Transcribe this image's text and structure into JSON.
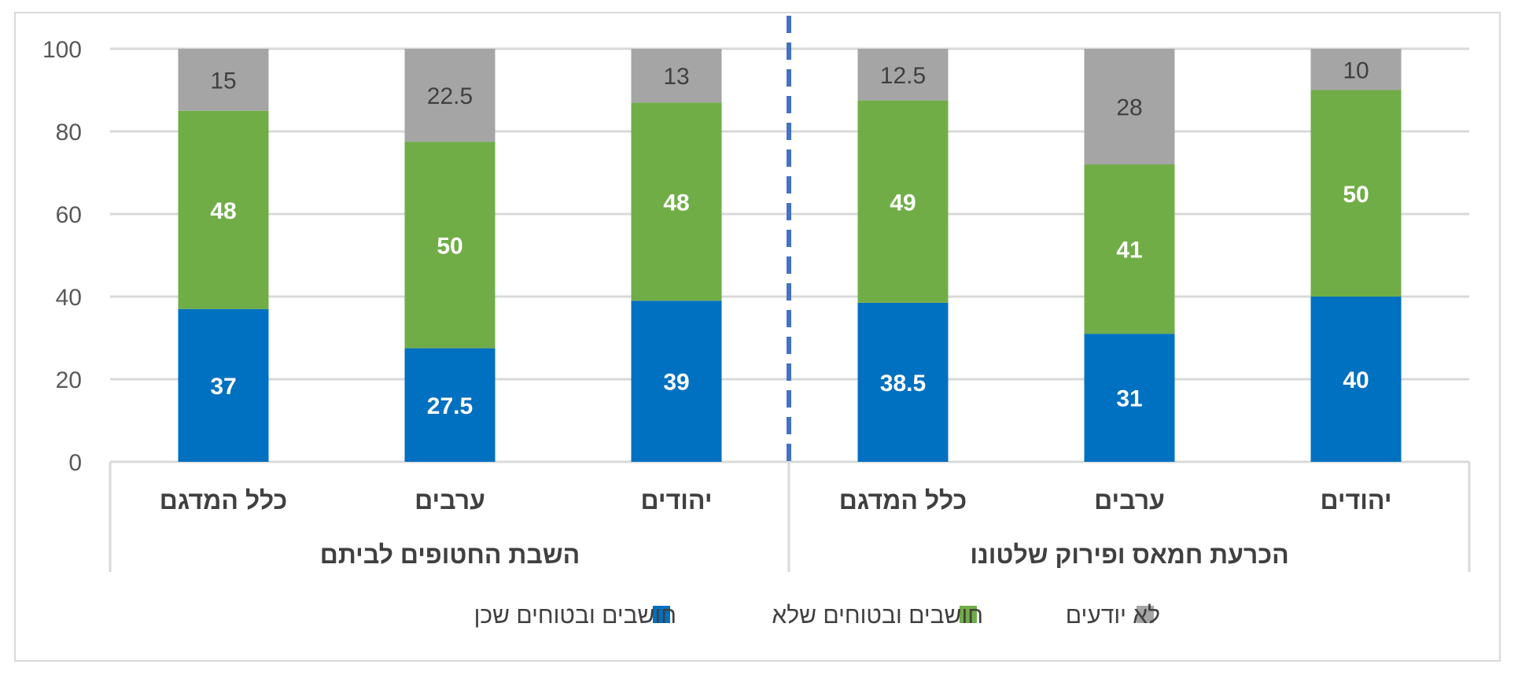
{
  "chart_data": {
    "type": "bar",
    "stacked": true,
    "ylim": [
      0,
      100
    ],
    "yticks": [
      0,
      20,
      40,
      60,
      80,
      100
    ],
    "grid": true,
    "legend_position": "bottom",
    "groups": [
      {
        "label": "השבת החטופים לביתם",
        "categories": [
          "כלל המדגם",
          "ערבים",
          "יהודים"
        ],
        "series": [
          {
            "name": "חושבים ובטוחים שכן",
            "values": [
              37,
              27.5,
              39
            ]
          },
          {
            "name": "חושבים ובטוחים שלא",
            "values": [
              48,
              50,
              48
            ]
          },
          {
            "name": "לא יודעים",
            "values": [
              15,
              22.5,
              13
            ]
          }
        ]
      },
      {
        "label": "הכרעת חמאס ופירוק שלטונו",
        "categories": [
          "כלל המדגם",
          "ערבים",
          "יהודים"
        ],
        "series": [
          {
            "name": "חושבים ובטוחים שכן",
            "values": [
              38.5,
              31,
              40
            ]
          },
          {
            "name": "חושבים ובטוחים שלא",
            "values": [
              49,
              41,
              50
            ]
          },
          {
            "name": "לא יודעים",
            "values": [
              12.5,
              28,
              10
            ]
          }
        ]
      }
    ],
    "legend": [
      {
        "name": "חושבים ובטוחים שכן",
        "color": "#0070c0"
      },
      {
        "name": "חושבים ובטוחים שלא",
        "color": "#70ad47"
      },
      {
        "name": "לא יודעים",
        "color": "#a5a5a5"
      }
    ]
  }
}
